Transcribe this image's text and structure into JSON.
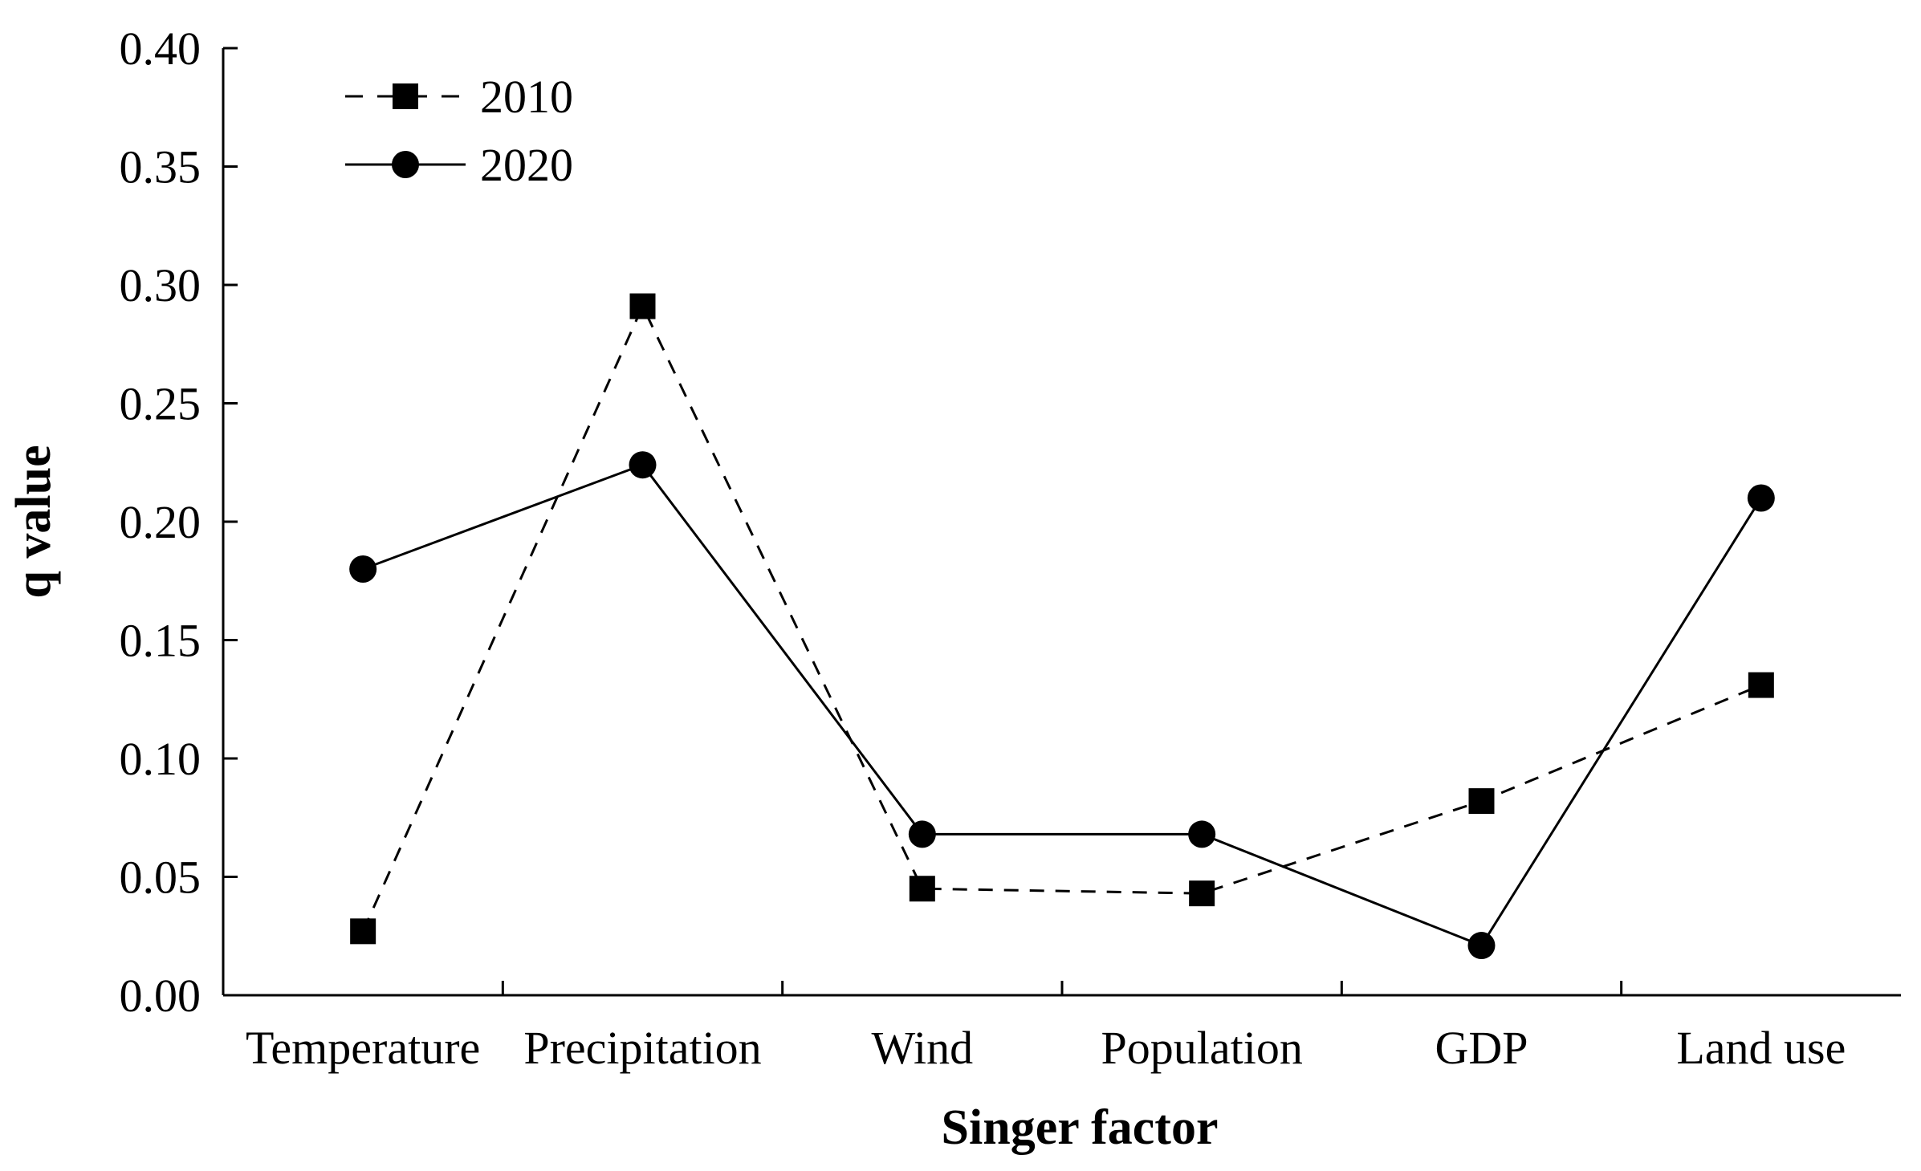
{
  "chart_data": {
    "type": "line",
    "title": "",
    "xlabel": "Singer factor",
    "ylabel": "q value",
    "categories": [
      "Temperature",
      "Precipitation",
      "Wind",
      "Population",
      "GDP",
      "Land use"
    ],
    "ylim": [
      0,
      0.4
    ],
    "yticks": [
      "0.00",
      "0.05",
      "0.10",
      "0.15",
      "0.20",
      "0.25",
      "0.30",
      "0.35",
      "0.40"
    ],
    "grid": false,
    "legend_position": "top-left",
    "series": [
      {
        "name": "2010",
        "style": "dashed",
        "marker": "square",
        "values": [
          0.027,
          0.291,
          0.045,
          0.043,
          0.082,
          0.131
        ]
      },
      {
        "name": "2020",
        "style": "solid",
        "marker": "circle",
        "values": [
          0.18,
          0.224,
          0.068,
          0.068,
          0.021,
          0.21
        ]
      }
    ],
    "colors": {
      "line": "#000000",
      "marker": "#000000"
    }
  }
}
